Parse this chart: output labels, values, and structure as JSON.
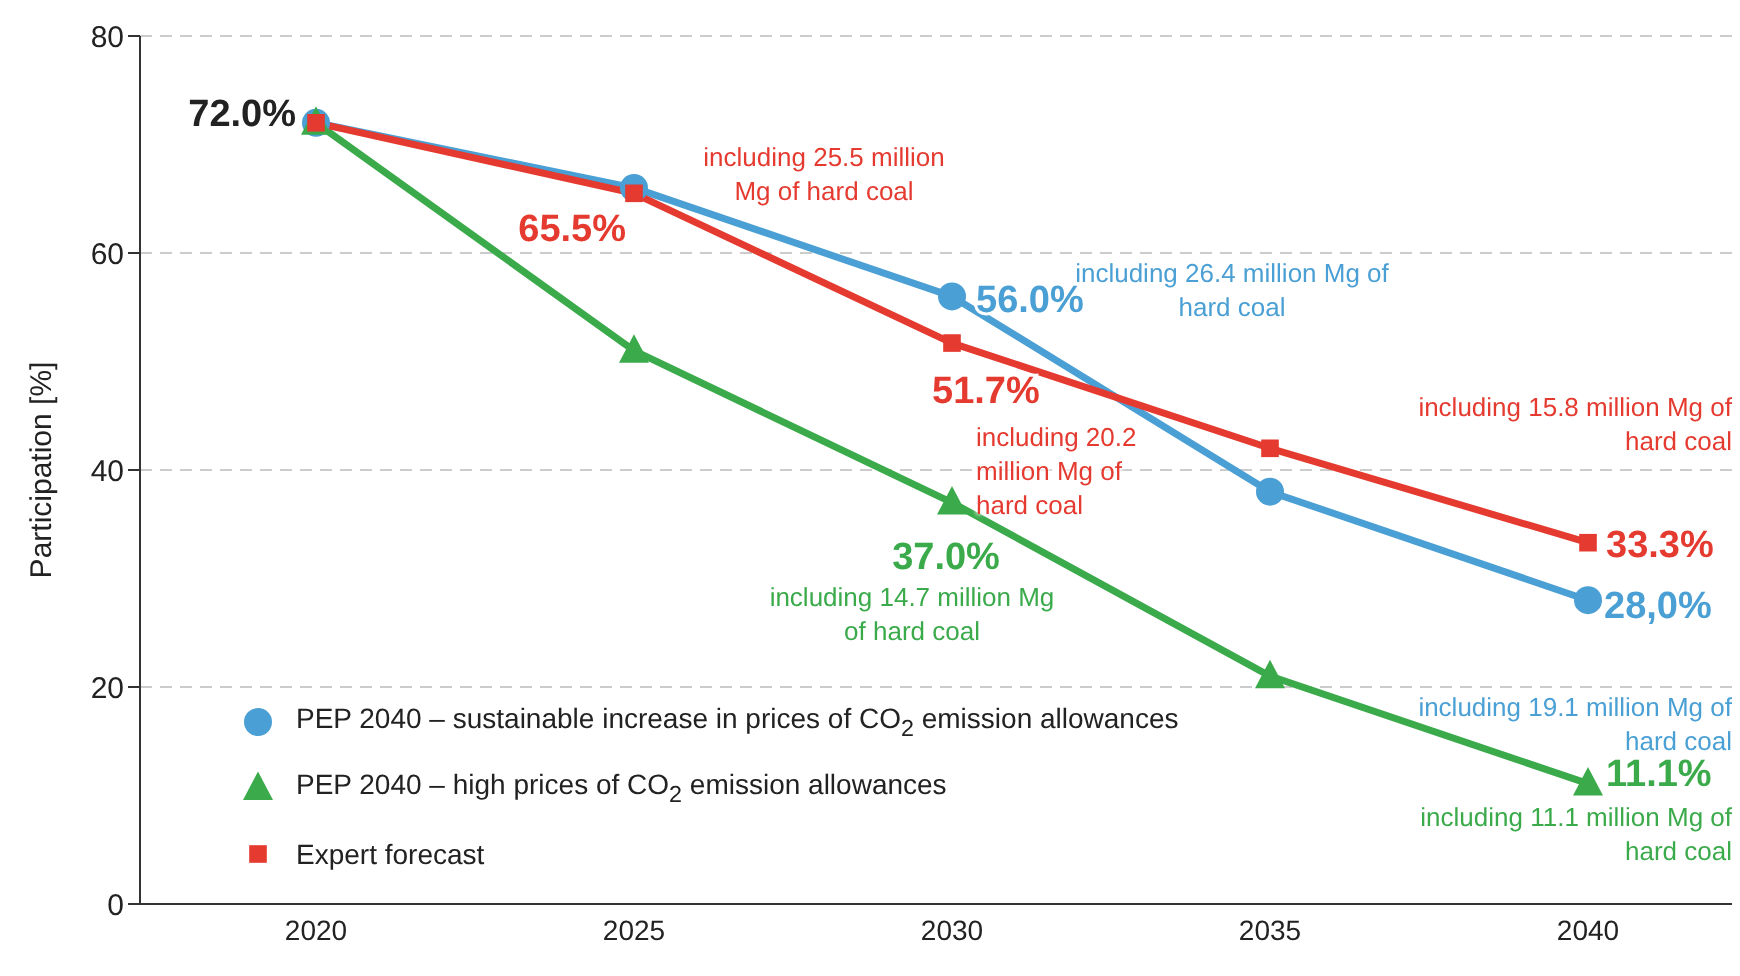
{
  "chart_data": {
    "type": "line",
    "ylabel": "Participation [%]",
    "categories": [
      "2020",
      "2025",
      "2030",
      "2035",
      "2040"
    ],
    "series": [
      {
        "name": "PEP 2040 – sustainable increase in prices of CO$_{2}$ emission allowances",
        "color": "#4a9fd4",
        "marker": "circle",
        "values": [
          72,
          66,
          56,
          38,
          28
        ],
        "value_labels": [
          null,
          null,
          "56.0%",
          null,
          "28,0%"
        ]
      },
      {
        "name": "PEP 2040 – high prices of CO$_{2}$ emission allowances",
        "color": "#3aaa4a",
        "marker": "triangle",
        "values": [
          72,
          51,
          37,
          21,
          11.1
        ],
        "value_labels": [
          null,
          null,
          "37.0%",
          null,
          "11.1%"
        ]
      },
      {
        "name": "Expert forecast",
        "color": "#e53a2f",
        "marker": "square",
        "values": [
          72,
          65.5,
          51.7,
          42,
          33.3
        ],
        "value_labels": [
          null,
          "65.5%",
          "51.7%",
          null,
          "33.3%"
        ]
      }
    ],
    "annotations": [
      {
        "text": "72.0%",
        "x": "2020",
        "y": 72
      },
      "including 25.5 million Mg of hard coal",
      "including 26.4 million Mg of hard coal",
      "including 20.2 million Mg of hard coal",
      "including 14.7 million Mg of hard coal",
      "including 15.8 million Mg of hard coal",
      "including 19.1 million Mg of hard coal",
      "including 11.1 million Mg of hard coal"
    ],
    "ylim": [
      0,
      80
    ],
    "yticks": [
      0,
      20,
      40,
      60,
      80
    ],
    "grid": "y",
    "legend": "bottom left",
    "line_style": "solid"
  }
}
